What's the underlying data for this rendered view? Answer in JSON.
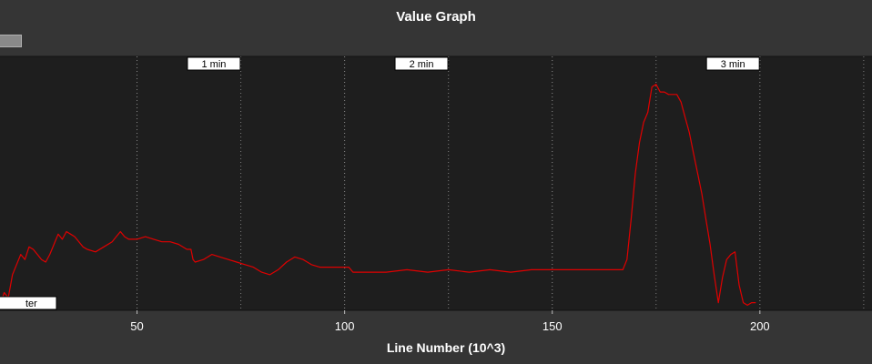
{
  "window": {
    "title": "Value Graph"
  },
  "colors": {
    "background": "#353535",
    "plot_background": "#1e1e1e",
    "series_line": "#e00000",
    "grid": "#bdbdbd",
    "text": "#ffffff"
  },
  "chart_data": {
    "type": "line",
    "title": "Value Graph",
    "xlabel": "Line Number (10^3)",
    "ylabel": "",
    "xlim": [
      17,
      227
    ],
    "ylim": [
      0,
      100
    ],
    "x_ticks": [
      50,
      100,
      150,
      200
    ],
    "grid": true,
    "grid_style": "dotted vertical",
    "time_markers": [
      {
        "label": "1 min",
        "x": 68.5
      },
      {
        "label": "2 min",
        "x": 118.5
      },
      {
        "label": "3 min",
        "x": 193.5
      }
    ],
    "legend_fragment": "ter",
    "series": [
      {
        "x": [
          17,
          18,
          19,
          20,
          21,
          22,
          23,
          24,
          25,
          26,
          27,
          28,
          29,
          30,
          31,
          32,
          33,
          34,
          35,
          36,
          37,
          38,
          40,
          42,
          44,
          45,
          46,
          47,
          48,
          50,
          52,
          54,
          56,
          58,
          60,
          62,
          63,
          63.5,
          64,
          66,
          68,
          70,
          72,
          74,
          76,
          78,
          80,
          82,
          84,
          86,
          88,
          90,
          92,
          94,
          96,
          98,
          100,
          101,
          101.5,
          102,
          105,
          110,
          115,
          120,
          125,
          130,
          135,
          140,
          145,
          150,
          155,
          160,
          165,
          167,
          168,
          169,
          170,
          171,
          172,
          173,
          174,
          175,
          176,
          177,
          178,
          179,
          180,
          181,
          182,
          183,
          184,
          185,
          186,
          187,
          188,
          189,
          190,
          191,
          192,
          193,
          194,
          195,
          196,
          197,
          198,
          199
        ],
        "y": [
          2,
          7,
          5,
          14,
          18,
          22,
          20,
          25,
          24,
          22,
          20,
          19,
          22,
          26,
          30,
          28,
          31,
          30,
          29,
          27,
          25,
          24,
          23,
          25,
          27,
          29,
          31,
          29,
          28,
          28,
          29,
          28,
          27,
          27,
          26,
          24,
          24,
          20,
          19,
          20,
          22,
          21,
          20,
          19,
          18,
          17,
          15,
          14,
          16,
          19,
          21,
          20,
          18,
          17,
          17,
          17,
          17,
          17,
          16,
          15,
          15,
          15,
          16,
          15,
          16,
          15,
          16,
          15,
          16,
          16,
          16,
          16,
          16,
          16,
          20,
          36,
          54,
          66,
          74,
          78,
          88,
          89,
          86,
          86,
          85,
          85,
          85,
          82,
          76,
          70,
          62,
          54,
          46,
          36,
          26,
          14,
          3,
          13,
          20,
          22,
          23,
          10,
          3,
          2,
          3,
          3
        ]
      }
    ]
  }
}
